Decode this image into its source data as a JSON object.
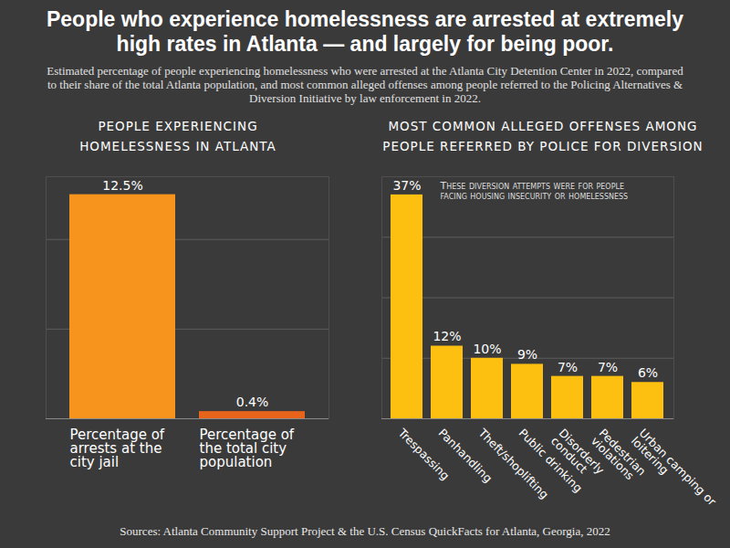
{
  "title": "People who experience homelessness are arrested at extremely high rates in Atlanta — and largely for being poor.",
  "subtitle": "Estimated percentage of people experiencing homelessness who were arrested at the Atlanta City Detention Center in 2022, compared to their share of the total Atlanta population, and most common alleged offenses among people referred to the Policing Alternatives & Diversion Initiative by law enforcement in 2022.",
  "source": "Sources: Atlanta Community Support Project & the U.S. Census QuickFacts for Atlanta, Georgia, 2022",
  "chart_data": [
    {
      "type": "bar",
      "title": "PEOPLE EXPERIENCING HOMELESSNESS IN ATLANTA",
      "categories": [
        "Percentage of arrests at the city jail",
        "Percentage of the total city population"
      ],
      "values": [
        12.5,
        0.4
      ],
      "value_labels": [
        "12.5%",
        "0.4%"
      ],
      "colors": [
        "#f7941d",
        "#e8641b"
      ],
      "ylim": [
        0,
        13.5
      ],
      "yticks": [
        0,
        5,
        10
      ],
      "grid": true,
      "data_labels": true,
      "tick_labels": "x"
    },
    {
      "type": "bar",
      "title": "MOST COMMON ALLEGED OFFENSES AMONG PEOPLE REFERRED BY POLICE FOR DIVERSION",
      "annotation": "These diversion attempts were for people facing housing insecurity or homelessness",
      "categories": [
        "Trespassing",
        "Panhandling",
        "Theft/shoplifting",
        "Public drinking",
        "Disorderly conduct",
        "Pedestrian violations",
        "Urban camping or loitering"
      ],
      "values": [
        37,
        12,
        10,
        9,
        7,
        7,
        6
      ],
      "value_labels": [
        "37%",
        "12%",
        "10%",
        "9%",
        "7%",
        "7%",
        "6%"
      ],
      "color": "#fdc010",
      "ylim": [
        0,
        40
      ],
      "yticks": [
        0,
        10,
        20,
        30
      ],
      "grid": true,
      "data_labels": true,
      "tick_labels": "x"
    }
  ]
}
